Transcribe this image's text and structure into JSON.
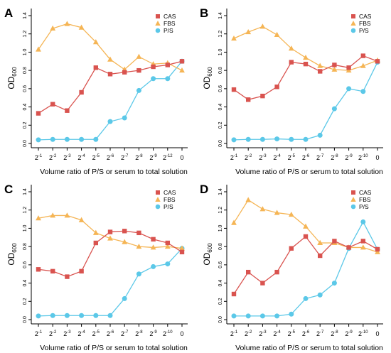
{
  "colors": {
    "CAS": "#d9534f",
    "FBS": "#f5b555",
    "P/S": "#5bc8e8"
  },
  "chart_data": [
    {
      "panel_label": "A",
      "type": "line",
      "ylabel_base": "OD",
      "ylabel_sub": "600",
      "xlabel": "Volume ratio of P/S or serum to total solution",
      "x_categories": [
        {
          "base": "2",
          "exp": "-1"
        },
        {
          "base": "2",
          "exp": "-2"
        },
        {
          "base": "2",
          "exp": "-3"
        },
        {
          "base": "2",
          "exp": "-4"
        },
        {
          "base": "2",
          "exp": "-5"
        },
        {
          "base": "2",
          "exp": "-6"
        },
        {
          "base": "2",
          "exp": "-7"
        },
        {
          "base": "2",
          "exp": "-8"
        },
        {
          "base": "2",
          "exp": "-9"
        },
        {
          "base": "2",
          "exp": "-12"
        },
        {
          "base": "0",
          "exp": ""
        }
      ],
      "ylim": [
        0,
        1.4
      ],
      "yticks": [
        "0.0",
        "0.2",
        "0.4",
        "0.6",
        "0.8",
        "1.0",
        "1.2",
        "1.4"
      ],
      "legend_position": "top-right",
      "series": [
        {
          "name": "CAS",
          "marker": "square",
          "values": [
            0.33,
            0.43,
            0.36,
            0.56,
            0.83,
            0.76,
            0.78,
            0.8,
            0.84,
            0.86,
            0.9
          ]
        },
        {
          "name": "FBS",
          "marker": "triangle",
          "values": [
            1.03,
            1.26,
            1.31,
            1.27,
            1.11,
            0.92,
            0.81,
            0.95,
            0.87,
            0.88,
            0.8
          ]
        },
        {
          "name": "P/S",
          "marker": "circle",
          "values": [
            0.04,
            0.045,
            0.045,
            0.045,
            0.045,
            0.24,
            0.28,
            0.58,
            0.71,
            0.71,
            0.9
          ]
        }
      ]
    },
    {
      "panel_label": "B",
      "type": "line",
      "ylabel_base": "OD",
      "ylabel_sub": "600",
      "xlabel": "Volume ratio of P/S or serum to total solution",
      "x_categories": [
        {
          "base": "2",
          "exp": "-1"
        },
        {
          "base": "2",
          "exp": "-2"
        },
        {
          "base": "2",
          "exp": "-3"
        },
        {
          "base": "2",
          "exp": "-4"
        },
        {
          "base": "2",
          "exp": "-5"
        },
        {
          "base": "2",
          "exp": "-6"
        },
        {
          "base": "2",
          "exp": "-7"
        },
        {
          "base": "2",
          "exp": "-8"
        },
        {
          "base": "2",
          "exp": "-9"
        },
        {
          "base": "2",
          "exp": "-10"
        },
        {
          "base": "0",
          "exp": ""
        }
      ],
      "ylim": [
        0,
        1.4
      ],
      "yticks": [
        "0.0",
        "0.2",
        "0.4",
        "0.6",
        "0.8",
        "1.0",
        "1.2",
        "1.4"
      ],
      "legend_position": "top-right",
      "series": [
        {
          "name": "CAS",
          "marker": "square",
          "values": [
            0.59,
            0.48,
            0.52,
            0.62,
            0.89,
            0.87,
            0.79,
            0.86,
            0.83,
            0.96,
            0.9
          ]
        },
        {
          "name": "FBS",
          "marker": "triangle",
          "values": [
            1.15,
            1.22,
            1.28,
            1.19,
            1.04,
            0.94,
            0.85,
            0.81,
            0.8,
            0.85,
            0.91
          ]
        },
        {
          "name": "P/S",
          "marker": "circle",
          "values": [
            0.04,
            0.045,
            0.045,
            0.05,
            0.045,
            0.045,
            0.09,
            0.38,
            0.6,
            0.57,
            0.89
          ]
        }
      ]
    },
    {
      "panel_label": "C",
      "type": "line",
      "ylabel_base": "OD",
      "ylabel_sub": "600",
      "xlabel": "Volume ratio of P/S or serum to total solution",
      "x_categories": [
        {
          "base": "2",
          "exp": "-1"
        },
        {
          "base": "2",
          "exp": "-2"
        },
        {
          "base": "2",
          "exp": "-3"
        },
        {
          "base": "2",
          "exp": "-4"
        },
        {
          "base": "2",
          "exp": "-5"
        },
        {
          "base": "2",
          "exp": "-6"
        },
        {
          "base": "2",
          "exp": "-7"
        },
        {
          "base": "2",
          "exp": "-8"
        },
        {
          "base": "2",
          "exp": "-9"
        },
        {
          "base": "2",
          "exp": "-10"
        },
        {
          "base": "0",
          "exp": ""
        }
      ],
      "ylim": [
        0,
        1.4
      ],
      "yticks": [
        "0.0",
        "0.2",
        "0.4",
        "0.6",
        "0.8",
        "1.0",
        "1.2",
        "1.4"
      ],
      "legend_position": "top-right",
      "series": [
        {
          "name": "CAS",
          "marker": "square",
          "values": [
            0.55,
            0.53,
            0.47,
            0.53,
            0.84,
            0.96,
            0.97,
            0.95,
            0.88,
            0.84,
            0.74
          ]
        },
        {
          "name": "FBS",
          "marker": "triangle",
          "values": [
            1.11,
            1.14,
            1.14,
            1.09,
            0.95,
            0.89,
            0.85,
            0.8,
            0.79,
            0.8,
            0.78
          ]
        },
        {
          "name": "P/S",
          "marker": "circle",
          "values": [
            0.04,
            0.045,
            0.045,
            0.045,
            0.045,
            0.045,
            0.23,
            0.5,
            0.58,
            0.61,
            0.78
          ]
        }
      ]
    },
    {
      "panel_label": "D",
      "type": "line",
      "ylabel_base": "OD",
      "ylabel_sub": "600",
      "xlabel": "Volume ratio of P/S or serum to total solution",
      "x_categories": [
        {
          "base": "2",
          "exp": "-1"
        },
        {
          "base": "2",
          "exp": "-2"
        },
        {
          "base": "2",
          "exp": "-3"
        },
        {
          "base": "2",
          "exp": "-4"
        },
        {
          "base": "2",
          "exp": "-5"
        },
        {
          "base": "2",
          "exp": "-6"
        },
        {
          "base": "2",
          "exp": "-7"
        },
        {
          "base": "2",
          "exp": "-8"
        },
        {
          "base": "2",
          "exp": "-9"
        },
        {
          "base": "2",
          "exp": "-10"
        },
        {
          "base": "0",
          "exp": ""
        }
      ],
      "ylim": [
        0,
        1.4
      ],
      "yticks": [
        "0.0",
        "0.2",
        "0.4",
        "0.6",
        "0.8",
        "1.0",
        "1.2",
        "1.4"
      ],
      "legend_position": "top-right",
      "series": [
        {
          "name": "CAS",
          "marker": "square",
          "values": [
            0.28,
            0.52,
            0.4,
            0.52,
            0.78,
            0.91,
            0.7,
            0.86,
            0.79,
            0.86,
            0.77
          ]
        },
        {
          "name": "FBS",
          "marker": "triangle",
          "values": [
            1.06,
            1.31,
            1.21,
            1.17,
            1.15,
            1.02,
            0.84,
            0.84,
            0.79,
            0.79,
            0.74
          ]
        },
        {
          "name": "P/S",
          "marker": "circle",
          "values": [
            0.04,
            0.04,
            0.04,
            0.04,
            0.06,
            0.23,
            0.27,
            0.4,
            0.78,
            1.07,
            0.77
          ]
        }
      ]
    }
  ]
}
